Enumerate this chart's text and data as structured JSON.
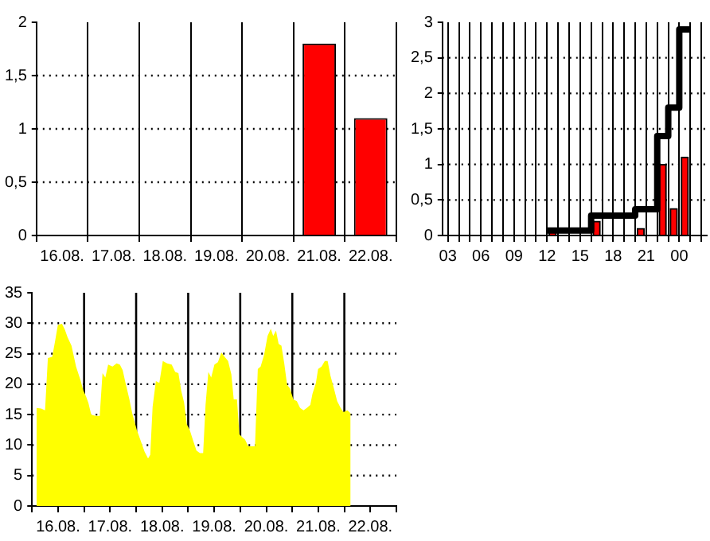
{
  "chart_data": [
    {
      "type": "bar",
      "categories": [
        "16.08.",
        "17.08.",
        "18.08.",
        "19.08.",
        "20.08.",
        "21.08.",
        "22.08."
      ],
      "values": [
        0,
        0,
        0,
        0,
        0,
        1.8,
        1.1
      ],
      "color": "#ff0000",
      "ylim": [
        0,
        2
      ],
      "yticks": [
        0,
        {
          "value": 0.5,
          "label": "0,5"
        },
        1,
        {
          "value": 1.5,
          "label": "1,5"
        },
        2
      ],
      "grid": true
    },
    {
      "type": "bar",
      "xlim": [
        "--08-21T02:30",
        "--08-22T02:30"
      ],
      "xticks": [
        {
          "value": "--08-21T03:00",
          "label": "03"
        },
        {
          "value": "--08-21T04:00",
          "label": null
        },
        {
          "value": "--08-21T05:00",
          "label": null
        },
        {
          "value": "--08-21T06:00",
          "label": "06"
        },
        {
          "value": "--08-21T07:00",
          "label": null
        },
        {
          "value": "--08-21T08:00",
          "label": null
        },
        {
          "value": "--08-21T09:00",
          "label": "09"
        },
        {
          "value": "--08-21T10:00",
          "label": null
        },
        {
          "value": "--08-21T11:00",
          "label": null
        },
        {
          "value": "--08-21T12:00",
          "label": "12"
        },
        {
          "value": "--08-21T13:00",
          "label": null
        },
        {
          "value": "--08-21T14:00",
          "label": null
        },
        {
          "value": "--08-21T15:00",
          "label": "15"
        },
        {
          "value": "--08-21T16:00",
          "label": null
        },
        {
          "value": "--08-21T17:00",
          "label": null
        },
        {
          "value": "--08-21T18:00",
          "label": "18"
        },
        {
          "value": "--08-21T19:00",
          "label": null
        },
        {
          "value": "--08-21T20:00",
          "label": null
        },
        {
          "value": "--08-21T21:00",
          "label": "21"
        },
        {
          "value": "--08-21T22:00",
          "label": null
        },
        {
          "value": "--08-21T23:00",
          "label": null
        },
        {
          "value": "--08-22T00:00",
          "label": "00"
        },
        {
          "value": "--08-22T01:00",
          "label": null
        },
        {
          "value": "--08-22T02:00",
          "label": null
        }
      ],
      "ylim": [
        0,
        3
      ],
      "yticks": [
        0,
        {
          "value": 0.5,
          "label": "0,5"
        },
        1,
        {
          "value": 1.5,
          "label": "1,5"
        },
        2,
        {
          "value": 2.5,
          "label": "2,5"
        },
        3
      ],
      "grid": true,
      "series": [
        {
          "type": "bar",
          "color": "#ff0000",
          "x": [
            "--08-21T12:30",
            "--08-21T16:30",
            "--08-21T20:30",
            "--08-21T22:30",
            "--08-21T23:30",
            "--08-22T00:30"
          ],
          "values": [
            0.07,
            0.2,
            0.1,
            1.0,
            0.38,
            1.1
          ]
        },
        {
          "type": "step",
          "color": "#000000",
          "x": [
            "--08-21T12:00",
            "--08-21T16:00",
            "--08-21T20:00",
            "--08-21T22:00",
            "--08-21T23:00",
            "--08-22T00:00",
            "--08-22T01:00"
          ],
          "values": [
            0.07,
            0.28,
            0.37,
            1.4,
            1.8,
            2.9,
            2.9
          ]
        }
      ]
    },
    {
      "type": "area",
      "color": "#ffff00",
      "xlim": [
        "--08-16",
        "--08-23"
      ],
      "xticks": [
        {
          "value": "--08-16",
          "label": null
        },
        {
          "value": "--08-16T12:00",
          "label": "16.08."
        },
        {
          "value": "--08-17",
          "label": null
        },
        {
          "value": "--08-17T12:00",
          "label": "17.08."
        },
        {
          "value": "--08-18",
          "label": null
        },
        {
          "value": "--08-18T12:00",
          "label": "18.08."
        },
        {
          "value": "--08-19",
          "label": null
        },
        {
          "value": "--08-19T12:00",
          "label": "19.08."
        },
        {
          "value": "--08-20",
          "label": null
        },
        {
          "value": "--08-20T12:00",
          "label": "20.08."
        },
        {
          "value": "--08-21",
          "label": null
        },
        {
          "value": "--08-21T12:00",
          "label": "21.08."
        },
        {
          "value": "--08-22",
          "label": null
        },
        {
          "value": "--08-22T12:00",
          "label": "22.08."
        },
        {
          "value": "--08-23",
          "label": null
        }
      ],
      "ylim": [
        0,
        35
      ],
      "yticks": [
        0,
        5,
        10,
        15,
        20,
        25,
        30,
        35
      ],
      "grid": "y",
      "ref_lines": [
        {
          "axis": "x",
          "value": "--08-17"
        },
        {
          "axis": "x",
          "value": "--08-18"
        },
        {
          "axis": "x",
          "value": "--08-19"
        },
        {
          "axis": "x",
          "value": "--08-20"
        },
        {
          "axis": "x",
          "value": "--08-21"
        },
        {
          "axis": "x",
          "value": "--08-22"
        }
      ],
      "x": [
        "--08-16T02:06",
        "--08-16T04:12",
        "--08-16T06:00",
        "--08-16T07:18",
        "--08-16T09:18",
        "--08-16T10:36",
        "--08-16T11:54",
        "--08-16T13:48",
        "--08-16T15:06",
        "--08-16T16:24",
        "--08-16T18:12",
        "--08-16T20:18",
        "--08-16T22:18",
        "--08-16T23:36",
        "--08-17T00:54",
        "--08-17T02:00",
        "--08-17T03:18",
        "--08-17T05:18",
        "--08-17T07:12",
        "--08-17T08:30",
        "--08-17T09:48",
        "--08-17T11:06",
        "--08-17T13:06",
        "--08-17T15:00",
        "--08-17T16:30",
        "--08-17T17:48",
        "--08-17T19:06",
        "--08-17T20:54",
        "--08-17T22:12",
        "--08-18T00:18",
        "--08-18T02:06",
        "--08-18T03:54",
        "--08-18T05:30",
        "--08-18T06:30",
        "--08-18T07:36",
        "--08-18T09:06",
        "--08-18T10:42",
        "--08-18T12:18",
        "--08-18T14:18",
        "--08-18T16:24",
        "--08-18T18:00",
        "--08-18T19:30",
        "--08-18T20:48",
        "--08-18T22:06",
        "--08-18T23:24",
        "--08-19T00:42",
        "--08-19T02:18",
        "--08-19T03:48",
        "--08-19T05:24",
        "--08-19T06:54",
        "--08-19T08:00",
        "--08-19T09:18",
        "--08-19T10:36",
        "--08-19T12:06",
        "--08-19T13:42",
        "--08-19T15:18",
        "--08-19T16:48",
        "--08-19T18:24",
        "--08-19T19:54",
        "--08-19T21:00",
        "--08-19T22:30",
        "--08-19T23:36",
        "--08-20T00:54",
        "--08-20T02:12",
        "--08-20T03:42",
        "--08-20T05:18",
        "--08-20T06:48",
        "--08-20T08:06",
        "--08-20T09:24",
        "--08-20T11:00",
        "--08-20T12:36",
        "--08-20T14:06",
        "--08-20T15:12",
        "--08-20T16:30",
        "--08-20T17:42",
        "--08-20T19:00",
        "--08-20T20:18",
        "--08-20T21:36",
        "--08-20T22:54",
        "--08-21T00:30",
        "--08-21T02:06",
        "--08-21T03:36",
        "--08-21T05:12",
        "--08-21T06:42",
        "--08-21T08:18",
        "--08-21T09:18",
        "--08-21T10:54",
        "--08-21T11:54",
        "--08-21T13:30",
        "--08-21T15:00",
        "--08-21T16:18",
        "--08-21T17:36",
        "--08-21T19:12",
        "--08-21T20:42",
        "--08-21T22:18",
        "--08-21T23:36",
        "--08-22T01:24",
        "--08-22T02:54"
      ],
      "values": [
        16.1,
        16.0,
        15.7,
        24.3,
        24.5,
        27.0,
        29.7,
        29.9,
        29.0,
        27.7,
        26.3,
        22.9,
        20.7,
        19.0,
        18.0,
        16.9,
        15.0,
        14.8,
        14.8,
        21.8,
        21.1,
        23.2,
        22.9,
        23.4,
        23.2,
        22.3,
        20.2,
        17.5,
        15.2,
        12.5,
        10.7,
        8.9,
        7.8,
        8.4,
        16.3,
        20.5,
        20.2,
        23.8,
        23.4,
        23.2,
        22.0,
        21.8,
        18.9,
        17.0,
        13.4,
        12.5,
        10.7,
        9.1,
        8.7,
        8.7,
        16.6,
        22.0,
        21.1,
        23.2,
        23.6,
        25.2,
        24.5,
        23.8,
        21.6,
        17.5,
        17.5,
        11.8,
        11.3,
        10.9,
        9.8,
        9.8,
        9.8,
        22.5,
        22.9,
        24.8,
        27.9,
        29.1,
        27.9,
        28.8,
        26.6,
        26.3,
        23.4,
        19.9,
        19.3,
        17.5,
        17.2,
        16.1,
        15.7,
        16.1,
        16.6,
        18.4,
        20.2,
        22.5,
        22.9,
        23.8,
        23.8,
        21.4,
        19.3,
        17.2,
        16.1,
        15.4,
        15.7,
        15.2
      ]
    }
  ]
}
